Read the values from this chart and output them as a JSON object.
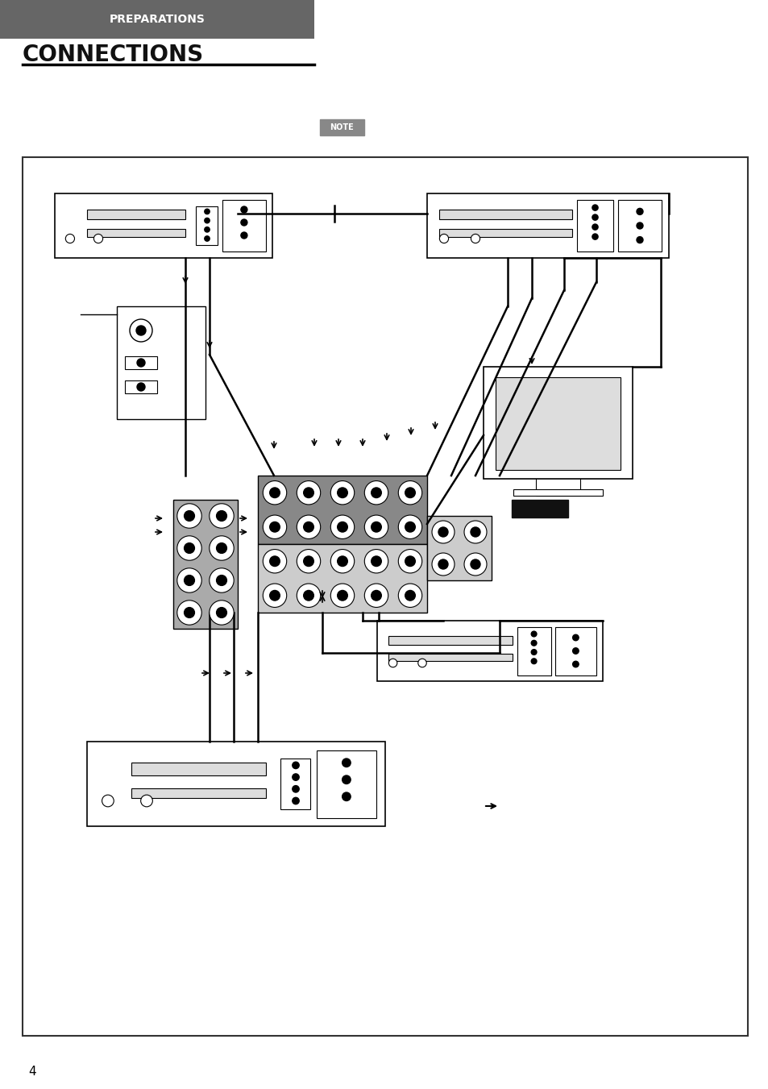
{
  "title_bg_color": "#666666",
  "title_text": "PREPARATIONS",
  "title_text_color": "#ffffff",
  "section_title": "CONNECTIONS",
  "section_title_color": "#111111",
  "page_number": "4",
  "note_bg": "#888888",
  "note_text": "NOTE",
  "box_bg": "#ffffff",
  "box_border": "#333333",
  "diagram_bg": "#ffffff"
}
